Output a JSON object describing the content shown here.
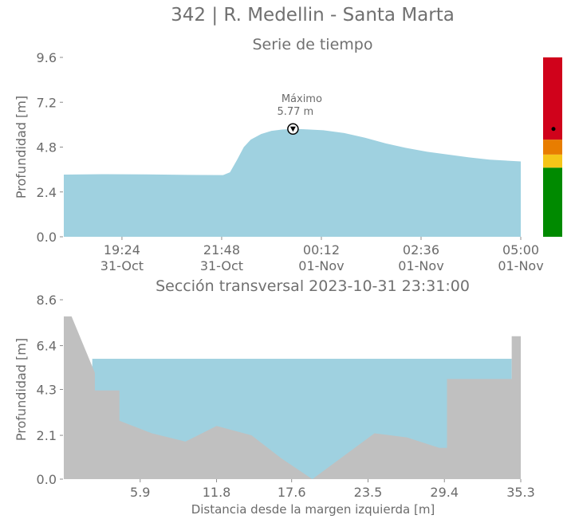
{
  "figure": {
    "title": "342 | R. Medellin - Santa Marta"
  },
  "chart_data": [
    {
      "type": "area",
      "title": "Serie de tiempo",
      "xlabel": "",
      "ylabel": "Profundidad [m]",
      "ylim": [
        0,
        9.6
      ],
      "yticks": [
        "0.0",
        "2.4",
        "4.8",
        "7.2",
        "9.6"
      ],
      "xlim": [
        "2023-10-31 18:00",
        "2023-11-01 05:00"
      ],
      "xticks": [
        {
          "value": "2023-10-31 19:24",
          "time": "19:24",
          "date": "31-Oct"
        },
        {
          "value": "2023-10-31 21:48",
          "time": "21:48",
          "date": "31-Oct"
        },
        {
          "value": "2023-11-01 00:12",
          "time": "00:12",
          "date": "01-Nov"
        },
        {
          "value": "2023-11-01 02:36",
          "time": "02:36",
          "date": "01-Nov"
        },
        {
          "value": "2023-11-01 05:00",
          "time": "05:00",
          "date": "01-Nov"
        }
      ],
      "grid": false,
      "color": "#9fd1e0",
      "series": [
        {
          "x": [
            "2023-10-31 18:00",
            "2023-10-31 19:00",
            "2023-10-31 20:00",
            "2023-10-31 21:00",
            "2023-10-31 21:50",
            "2023-10-31 22:00",
            "2023-10-31 22:10",
            "2023-10-31 22:20",
            "2023-10-31 22:30",
            "2023-10-31 22:45",
            "2023-10-31 23:00",
            "2023-10-31 23:15",
            "2023-10-31 23:31",
            "2023-10-31 23:50",
            "2023-11-01 00:15",
            "2023-11-01 00:45",
            "2023-11-01 01:15",
            "2023-11-01 01:45",
            "2023-11-01 02:15",
            "2023-11-01 02:45",
            "2023-11-01 03:15",
            "2023-11-01 03:45",
            "2023-11-01 04:15",
            "2023-11-01 05:00"
          ],
          "y": [
            3.33,
            3.35,
            3.34,
            3.31,
            3.3,
            3.45,
            4.1,
            4.8,
            5.2,
            5.5,
            5.67,
            5.74,
            5.77,
            5.75,
            5.7,
            5.55,
            5.3,
            5.0,
            4.75,
            4.55,
            4.4,
            4.25,
            4.13,
            4.03
          ]
        }
      ],
      "annotation": {
        "label": "Máximo",
        "value_text": "5.77 m",
        "x": "2023-10-31 23:31",
        "y": 5.77
      },
      "alert_bar": {
        "levels": [
          {
            "from": 0.0,
            "to": 3.7,
            "color": "#008a00"
          },
          {
            "from": 3.7,
            "to": 4.4,
            "color": "#f5c518"
          },
          {
            "from": 4.4,
            "to": 5.2,
            "color": "#e87d00"
          },
          {
            "from": 5.2,
            "to": 9.6,
            "color": "#d0021b"
          }
        ],
        "marker_value": 5.77
      }
    },
    {
      "type": "area",
      "title": "Sección transversal 2023-10-31 23:31:00",
      "xlabel": "Distancia desde la margen izquierda [m]",
      "ylabel": "Profundidad [m]",
      "ylim": [
        0,
        8.6
      ],
      "yticks": [
        "0.0",
        "2.1",
        "4.3",
        "6.4",
        "8.6"
      ],
      "xlim": [
        0,
        35.3
      ],
      "xticks": [
        "5.9",
        "11.8",
        "17.6",
        "23.5",
        "29.4",
        "35.3"
      ],
      "grid": false,
      "water_level": 5.77,
      "water_color": "#9fd1e0",
      "ground_color": "#c0c0c0",
      "series": [
        {
          "name": "",
          "x": [
            0,
            0.6,
            2.4,
            2.4,
            4.3,
            4.3,
            6.8,
            9.4,
            11.8,
            14.5,
            16.8,
            19.2,
            21.6,
            24.0,
            26.5,
            29.0,
            29.6,
            29.6,
            32.5,
            34.6,
            34.6,
            35.3
          ],
          "y": [
            7.8,
            7.8,
            5.1,
            4.25,
            4.25,
            2.8,
            2.2,
            1.8,
            2.55,
            2.1,
            1.0,
            0.0,
            1.1,
            2.2,
            2.0,
            1.5,
            1.5,
            4.8,
            4.8,
            4.8,
            6.85,
            6.85
          ]
        }
      ]
    }
  ]
}
